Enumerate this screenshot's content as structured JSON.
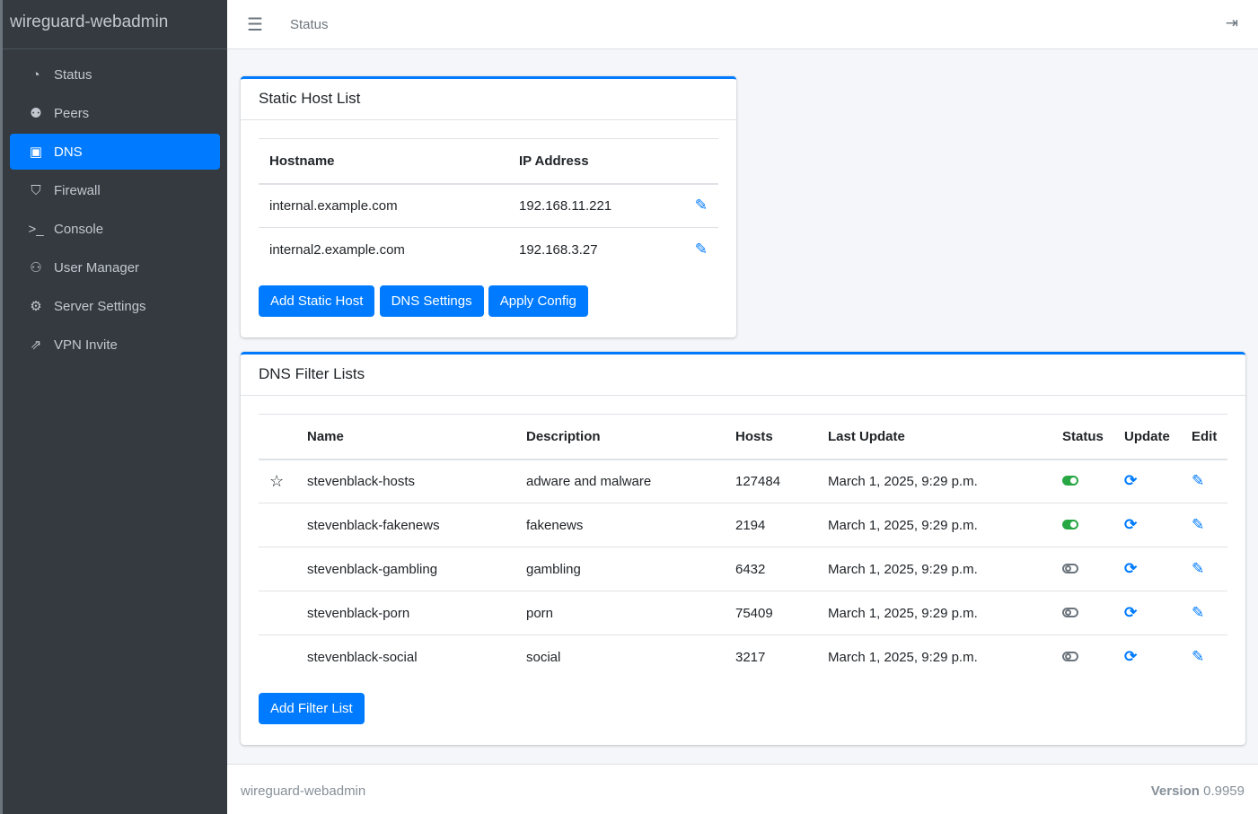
{
  "brand": "wireguard-webadmin",
  "sidebar": {
    "items": [
      {
        "label": "Status",
        "icon": "tachometer-icon",
        "glyph": "◔"
      },
      {
        "label": "Peers",
        "icon": "users-cog-icon",
        "glyph": "⚉"
      },
      {
        "label": "DNS",
        "icon": "address-book-icon",
        "glyph": "▣",
        "active": true
      },
      {
        "label": "Firewall",
        "icon": "shield-icon",
        "glyph": "⛉"
      },
      {
        "label": "Console",
        "icon": "terminal-icon",
        "glyph": ">_"
      },
      {
        "label": "User Manager",
        "icon": "users-icon",
        "glyph": "⚇"
      },
      {
        "label": "Server Settings",
        "icon": "cogs-icon",
        "glyph": "⚙"
      },
      {
        "label": "VPN Invite",
        "icon": "share-icon",
        "glyph": "⇗"
      }
    ]
  },
  "header": {
    "title": "Status",
    "menu_icon": "bars-icon",
    "logout_icon": "sign-out-icon"
  },
  "static_hosts": {
    "title": "Static Host List",
    "columns": [
      "Hostname",
      "IP Address"
    ],
    "rows": [
      {
        "hostname": "internal.example.com",
        "ip": "192.168.11.221"
      },
      {
        "hostname": "internal2.example.com",
        "ip": "192.168.3.27"
      }
    ],
    "buttons": {
      "add": "Add Static Host",
      "settings": "DNS Settings",
      "apply": "Apply Config"
    }
  },
  "filter_lists": {
    "title": "DNS Filter Lists",
    "columns": [
      "Name",
      "Description",
      "Hosts",
      "Last Update",
      "Status",
      "Update",
      "Edit"
    ],
    "rows": [
      {
        "starred": true,
        "name": "stevenblack-hosts",
        "description": "adware and malware",
        "hosts": "127484",
        "last_update": "March 1, 2025, 9:29 p.m.",
        "enabled": true
      },
      {
        "starred": false,
        "name": "stevenblack-fakenews",
        "description": "fakenews",
        "hosts": "2194",
        "last_update": "March 1, 2025, 9:29 p.m.",
        "enabled": true
      },
      {
        "starred": false,
        "name": "stevenblack-gambling",
        "description": "gambling",
        "hosts": "6432",
        "last_update": "March 1, 2025, 9:29 p.m.",
        "enabled": false
      },
      {
        "starred": false,
        "name": "stevenblack-porn",
        "description": "porn",
        "hosts": "75409",
        "last_update": "March 1, 2025, 9:29 p.m.",
        "enabled": false
      },
      {
        "starred": false,
        "name": "stevenblack-social",
        "description": "social",
        "hosts": "3217",
        "last_update": "March 1, 2025, 9:29 p.m.",
        "enabled": false
      }
    ],
    "add_button": "Add Filter List"
  },
  "footer": {
    "left": "wireguard-webadmin",
    "version_label": "Version",
    "version": "0.9959"
  },
  "colors": {
    "accent": "#007bff",
    "sidebar": "#343a40",
    "enabled": "#28a745",
    "disabled": "#6c757d"
  }
}
